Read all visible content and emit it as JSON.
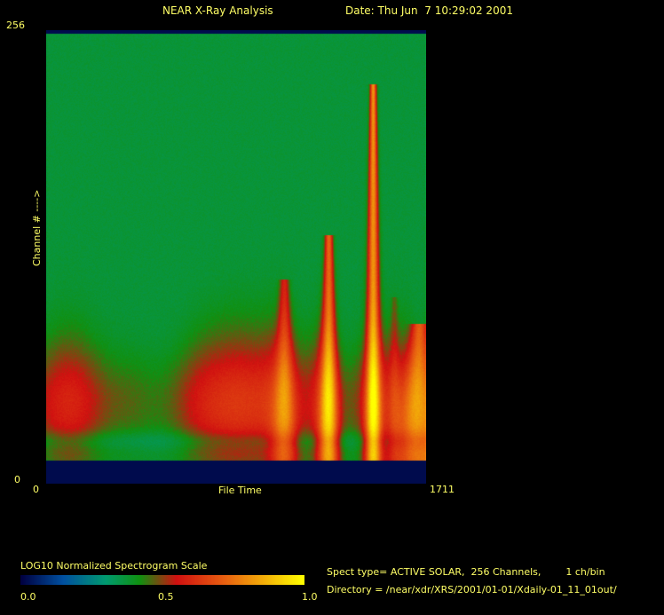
{
  "header": {
    "title": "NEAR X-Ray Analysis",
    "date": "Date: Thu Jun  7 10:29:02 2001"
  },
  "chart_data": {
    "type": "heatmap",
    "title": "NEAR X-Ray Analysis",
    "xlabel": "File Time",
    "ylabel": "Channel # ---->",
    "xlim": [
      0,
      1711
    ],
    "ylim": [
      0,
      256
    ],
    "x_ticks": [
      "0",
      "1711"
    ],
    "y_ticks": [
      "0",
      "256"
    ],
    "colorbar": {
      "label": "LOG10 Normalized Spectrogram Scale",
      "range": [
        0.0,
        1.0
      ],
      "ticks": [
        "0.0",
        "0.5",
        "1.0"
      ],
      "colors": [
        "#000040",
        "#0050a0",
        "#009a70",
        "#109010",
        "#d01010",
        "#e86010",
        "#ffff00"
      ]
    }
  },
  "info": {
    "spect_type": "Spect type= ACTIVE SOLAR,  256 Channels,        1 ch/bin",
    "directory": "Directory = /near/xdr/XRS/2001/01-01/Xdaily-01_11_01out/"
  }
}
